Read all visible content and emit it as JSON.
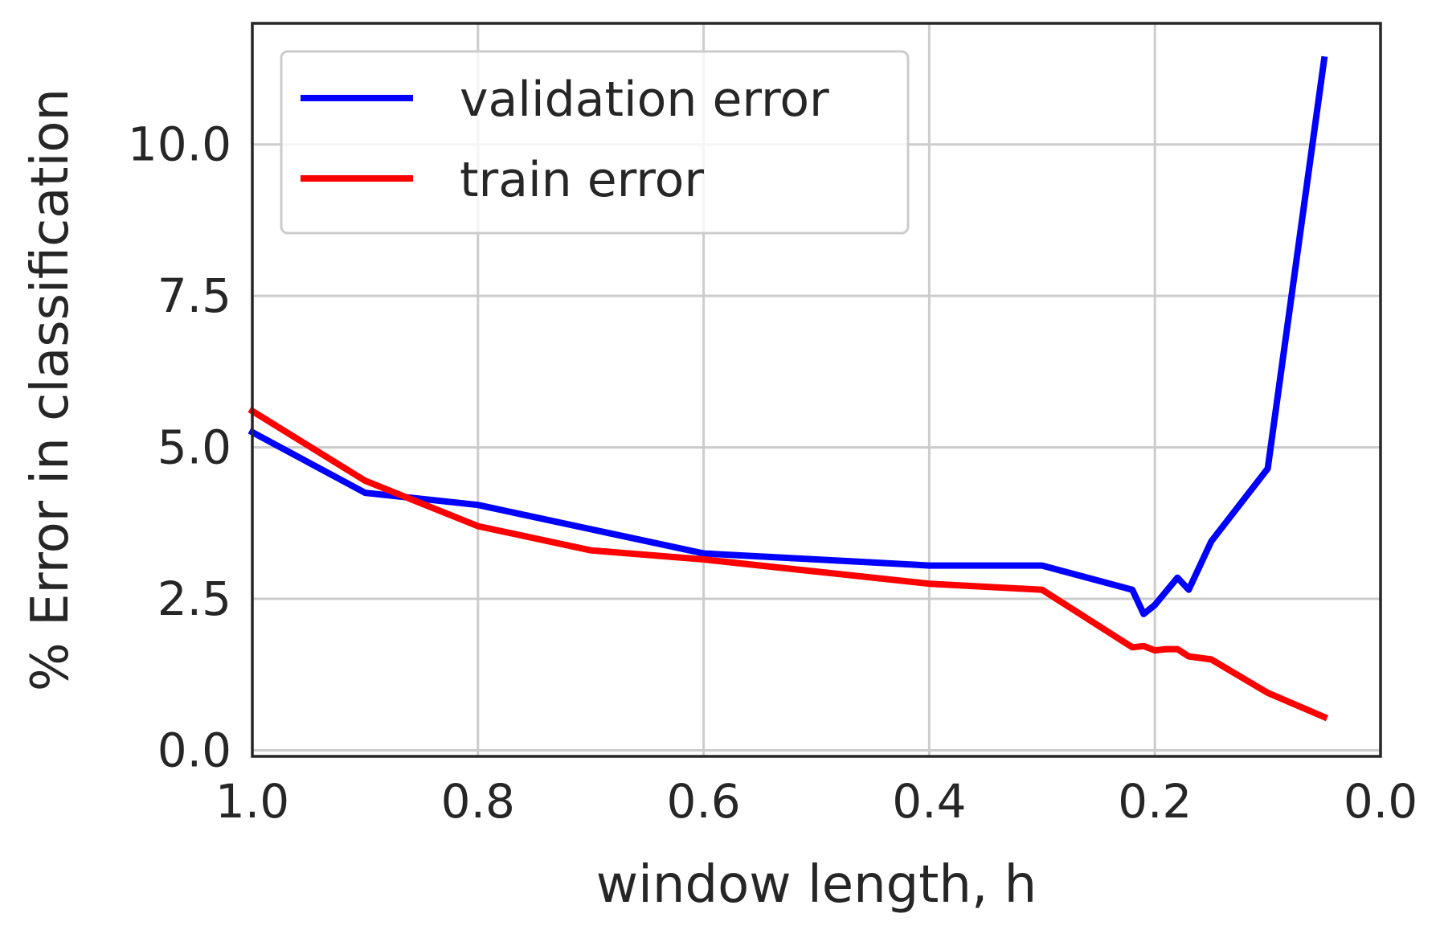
{
  "chart_data": {
    "type": "line",
    "title": "",
    "xlabel": "window length, h",
    "ylabel": "% Error in classification",
    "xlim": [
      1.0,
      0.0
    ],
    "ylim": [
      -0.1,
      12.0
    ],
    "x_inverted": true,
    "grid": true,
    "legend_placement": "top-left",
    "x_ticks": [
      1.0,
      0.8,
      0.6,
      0.4,
      0.2,
      0.0
    ],
    "x_tick_labels": [
      "1.0",
      "0.8",
      "0.6",
      "0.4",
      "0.2",
      "0.0"
    ],
    "y_ticks": [
      0.0,
      2.5,
      5.0,
      7.5,
      10.0
    ],
    "y_tick_labels": [
      "0.0",
      "2.5",
      "5.0",
      "7.5",
      "10.0"
    ],
    "series": [
      {
        "name": "validation error",
        "color": "#0000ff",
        "x": [
          1.0,
          0.9,
          0.8,
          0.7,
          0.6,
          0.5,
          0.4,
          0.3,
          0.22,
          0.21,
          0.2,
          0.18,
          0.17,
          0.15,
          0.1,
          0.05
        ],
        "y": [
          5.25,
          4.25,
          4.05,
          3.65,
          3.25,
          3.15,
          3.05,
          3.05,
          2.65,
          2.25,
          2.4,
          2.85,
          2.65,
          3.45,
          4.65,
          11.4
        ]
      },
      {
        "name": "train error",
        "color": "#ff0000",
        "x": [
          1.0,
          0.9,
          0.8,
          0.7,
          0.6,
          0.5,
          0.4,
          0.3,
          0.22,
          0.21,
          0.2,
          0.19,
          0.18,
          0.17,
          0.15,
          0.1,
          0.05
        ],
        "y": [
          5.6,
          4.45,
          3.7,
          3.3,
          3.15,
          2.95,
          2.75,
          2.65,
          1.7,
          1.72,
          1.65,
          1.67,
          1.67,
          1.55,
          1.5,
          0.95,
          0.55
        ]
      }
    ]
  }
}
